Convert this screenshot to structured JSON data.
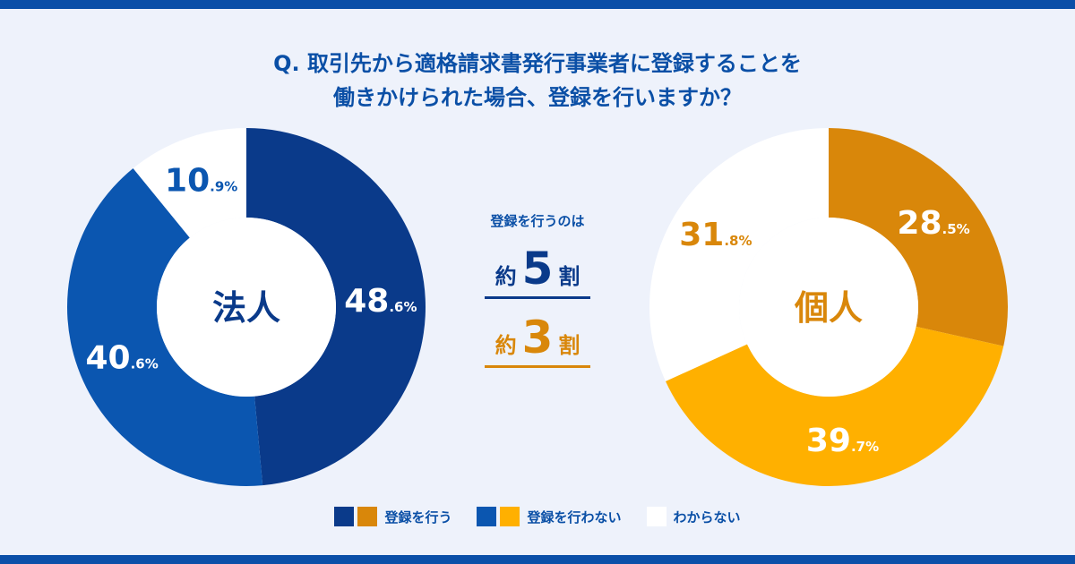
{
  "question": {
    "line1": "Q. 取引先から適格請求書発行事業者に登録することを",
    "line2": "働きかけられた場合、登録を行いますか？"
  },
  "summary": {
    "caption": "登録を行うのは",
    "corp": {
      "prefix": "約",
      "number": "5",
      "suffix": "割"
    },
    "indiv": {
      "prefix": "約",
      "number": "3",
      "suffix": "割"
    }
  },
  "legend": [
    {
      "label": "登録を行う",
      "colors": [
        "#0a3a8a",
        "#d9870a"
      ]
    },
    {
      "label": "登録を行わない",
      "colors": [
        "#0b56b0",
        "#ffb000"
      ]
    },
    {
      "label": "わからない",
      "colors": [
        "#ffffff"
      ]
    }
  ],
  "chart_data": [
    {
      "type": "pie",
      "center_label": "法人",
      "center_color": "#0a3a8a",
      "categories": [
        "登録を行う",
        "登録を行わない",
        "わからない"
      ],
      "values": [
        48.6,
        40.6,
        10.9
      ],
      "labels": [
        {
          "int": "48",
          "dec": ".6%"
        },
        {
          "int": "40",
          "dec": ".6%"
        },
        {
          "int": "10",
          "dec": ".9%"
        }
      ],
      "colors": [
        "#0a3a8a",
        "#0b56b0",
        "#ffffff"
      ],
      "label_colors": [
        "#ffffff",
        "#ffffff",
        "#0b56b0"
      ]
    },
    {
      "type": "pie",
      "center_label": "個人",
      "center_color": "#d9870a",
      "categories": [
        "登録を行う",
        "登録を行わない",
        "わからない"
      ],
      "values": [
        28.5,
        39.7,
        31.8
      ],
      "labels": [
        {
          "int": "28",
          "dec": ".5%"
        },
        {
          "int": "39",
          "dec": ".7%"
        },
        {
          "int": "31",
          "dec": ".8%"
        }
      ],
      "colors": [
        "#d9870a",
        "#ffb000",
        "#ffffff"
      ],
      "label_colors": [
        "#ffffff",
        "#ffffff",
        "#d9870a"
      ]
    }
  ]
}
